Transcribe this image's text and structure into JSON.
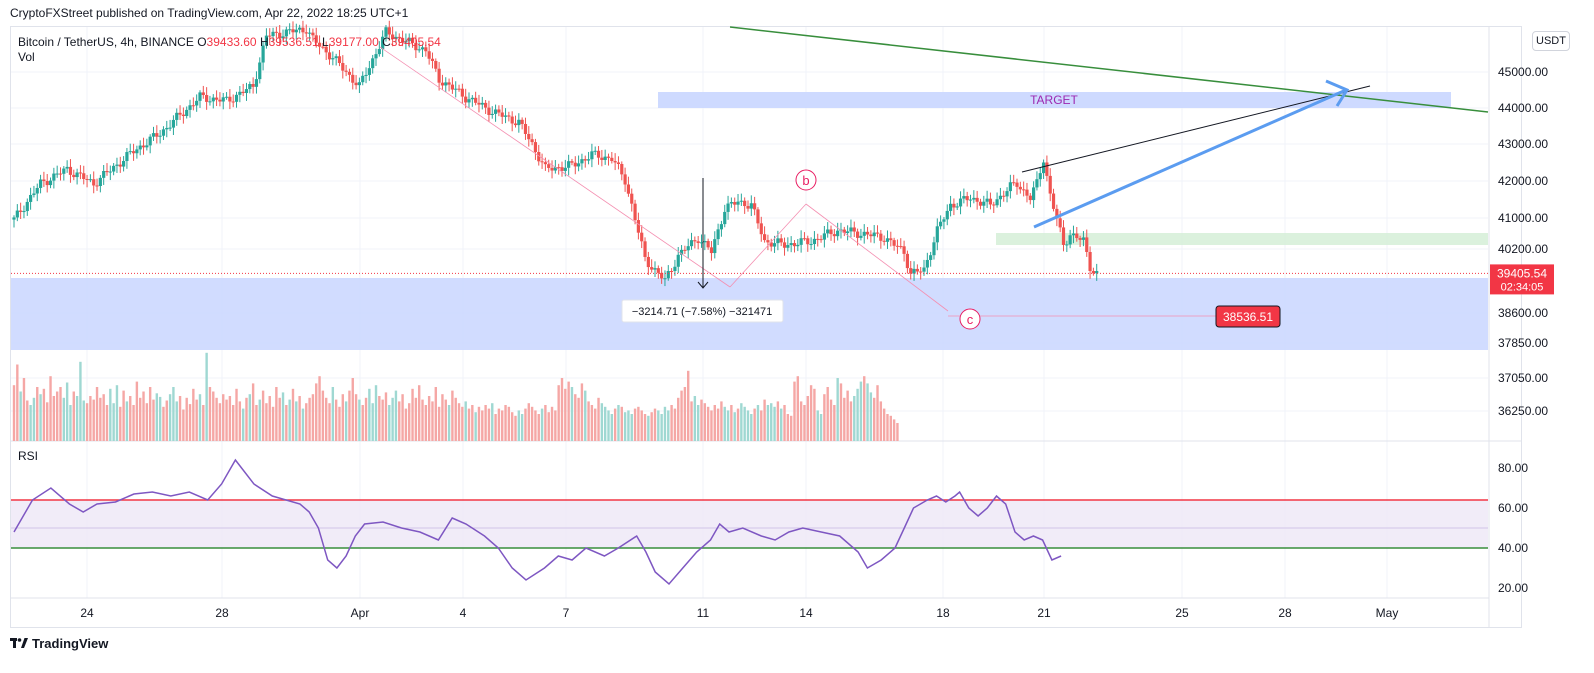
{
  "publisher": "CryptoFXStreet published on TradingView.com, Apr 22, 2022 18:25 UTC+1",
  "footer": "TradingView",
  "currency_button": "USDT",
  "legend": {
    "symbol": "Bitcoin / TetherUS, 4h, BINANCE",
    "open_label": "O",
    "open": "39433.60",
    "high_label": "H",
    "high": "39536.51",
    "low_label": "L",
    "low": "39177.00",
    "close_label": "C",
    "close": "39405.54"
  },
  "vol_label": "Vol",
  "rsi_label": "RSI",
  "colors": {
    "up": "#26a69a",
    "down": "#ef5350",
    "rsi": "#7e57c2",
    "zone_blue": "#c9d6ff",
    "zone_green": "#d7f0d9",
    "trend_green": "#388e3c",
    "arrow_blue": "#5b9cf0",
    "marker": "#e91e63"
  },
  "chart_data": {
    "type": "candlestick",
    "price_axis": {
      "ticks": [
        45000,
        44000,
        43000,
        42000,
        41000,
        40200,
        38600,
        37850,
        37050,
        36250
      ],
      "range": [
        35200,
        45950
      ]
    },
    "price_tick_labels": [
      "45000.00",
      "44000.00",
      "43000.00",
      "42000.00",
      "41000.00",
      "40200.00",
      "38600.00",
      "37850.00",
      "37050.00",
      "36250.00"
    ],
    "time_axis": {
      "labels": [
        "24",
        "28",
        "Apr",
        "4",
        "7",
        "11",
        "14",
        "18",
        "21",
        "25",
        "28",
        "May"
      ]
    },
    "last_price": "39405.54",
    "countdown": "02:34:05",
    "close_path": [
      [
        0,
        40900
      ],
      [
        8,
        41900
      ],
      [
        16,
        42300
      ],
      [
        24,
        41900
      ],
      [
        36,
        42800
      ],
      [
        44,
        43300
      ],
      [
        56,
        44300
      ],
      [
        64,
        44200
      ],
      [
        72,
        44600
      ],
      [
        76,
        46000
      ],
      [
        82,
        46100
      ],
      [
        88,
        46200
      ],
      [
        90,
        45900
      ],
      [
        96,
        45400
      ],
      [
        104,
        44600
      ],
      [
        112,
        46100
      ],
      [
        124,
        45600
      ],
      [
        128,
        44800
      ],
      [
        136,
        44300
      ],
      [
        144,
        43900
      ],
      [
        152,
        43600
      ],
      [
        156,
        43000
      ],
      [
        160,
        42300
      ],
      [
        168,
        42400
      ],
      [
        174,
        42700
      ],
      [
        180,
        42600
      ],
      [
        184,
        42000
      ],
      [
        186,
        41300
      ],
      [
        190,
        39800
      ],
      [
        196,
        39200
      ],
      [
        200,
        39900
      ],
      [
        206,
        40400
      ],
      [
        210,
        40000
      ],
      [
        214,
        41200
      ],
      [
        218,
        41400
      ],
      [
        222,
        41300
      ],
      [
        226,
        40300
      ],
      [
        232,
        40200
      ],
      [
        240,
        40300
      ],
      [
        248,
        40600
      ],
      [
        256,
        40500
      ],
      [
        262,
        40400
      ],
      [
        268,
        40000
      ],
      [
        270,
        39400
      ],
      [
        274,
        39500
      ],
      [
        278,
        40600
      ],
      [
        282,
        41300
      ],
      [
        288,
        41500
      ],
      [
        294,
        41300
      ],
      [
        300,
        41800
      ],
      [
        302,
        41900
      ],
      [
        306,
        41500
      ],
      [
        308,
        41900
      ],
      [
        310,
        42600
      ],
      [
        312,
        41600
      ],
      [
        316,
        40200
      ],
      [
        318,
        40500
      ],
      [
        322,
        40300
      ],
      [
        324,
        39600
      ],
      [
        326,
        39405.54
      ]
    ],
    "volume": [
      62,
      85,
      55,
      70,
      45,
      40,
      48,
      60,
      52,
      58,
      43,
      72,
      50,
      55,
      60,
      48,
      65,
      40,
      55,
      50,
      88,
      45,
      42,
      50,
      46,
      60,
      48,
      52,
      40,
      58,
      42,
      62,
      38,
      56,
      44,
      50,
      40,
      66,
      48,
      55,
      42,
      60,
      46,
      53,
      49,
      38,
      45,
      52,
      60,
      44,
      50,
      35,
      48,
      41,
      58,
      46,
      52,
      40,
      98,
      60,
      55,
      48,
      42,
      52,
      46,
      50,
      40,
      58,
      44,
      36,
      48,
      52,
      64,
      40,
      46,
      56,
      42,
      50,
      38,
      60,
      48,
      54,
      40,
      46,
      58,
      44,
      50,
      36,
      42,
      48,
      52,
      64,
      72,
      56,
      48,
      42,
      60,
      46,
      38,
      52,
      44,
      56,
      70,
      52,
      46,
      40,
      48,
      58,
      42,
      62,
      50,
      46,
      54,
      40,
      48,
      56,
      44,
      52,
      36,
      42,
      58,
      48,
      62,
      46,
      40,
      50,
      44,
      60,
      38,
      52,
      46,
      40,
      56,
      48,
      42,
      38,
      44,
      36,
      40,
      32,
      38,
      34,
      40,
      36,
      42,
      30,
      36,
      34,
      40,
      38,
      32,
      28,
      34,
      30,
      36,
      42,
      38,
      34,
      30,
      36,
      40,
      32,
      38,
      34,
      62,
      70,
      58,
      66,
      60,
      52,
      48,
      64,
      56,
      44,
      40,
      36,
      48,
      42,
      38,
      34,
      30,
      36,
      40,
      38,
      32,
      34,
      30,
      36,
      38,
      34,
      30,
      28,
      32,
      36,
      34,
      30,
      38,
      34,
      40,
      36,
      48,
      56,
      60,
      78,
      44,
      50,
      40,
      46,
      42,
      38,
      34,
      40,
      36,
      44,
      38,
      34,
      40,
      32,
      36,
      42,
      38,
      34,
      30,
      36,
      40,
      34,
      46,
      40,
      42,
      38,
      44,
      36,
      40,
      30,
      28,
      66,
      72,
      44,
      40,
      50,
      62,
      58,
      34,
      30,
      52,
      60,
      46,
      40,
      70,
      64,
      48,
      56,
      44,
      50,
      58,
      66,
      72,
      64,
      54,
      48,
      62,
      44,
      36,
      30,
      28,
      24,
      20
    ],
    "rsi": {
      "levels": [
        80,
        60,
        40,
        20
      ],
      "level_labels": [
        "80.00",
        "60.00",
        "40.00",
        "20.00"
      ],
      "upper_band": 64,
      "lower_band": 40,
      "mid": 50,
      "points": [
        [
          0,
          48
        ],
        [
          8,
          64
        ],
        [
          16,
          70
        ],
        [
          24,
          62
        ],
        [
          30,
          58
        ],
        [
          36,
          62
        ],
        [
          44,
          63
        ],
        [
          52,
          67
        ],
        [
          60,
          68
        ],
        [
          68,
          66
        ],
        [
          76,
          68
        ],
        [
          84,
          64
        ],
        [
          90,
          72
        ],
        [
          96,
          84
        ],
        [
          104,
          72
        ],
        [
          112,
          66
        ],
        [
          124,
          62
        ],
        [
          128,
          58
        ],
        [
          132,
          50
        ],
        [
          136,
          34
        ],
        [
          140,
          30
        ],
        [
          144,
          36
        ],
        [
          148,
          46
        ],
        [
          152,
          52
        ],
        [
          160,
          53
        ],
        [
          168,
          50
        ],
        [
          176,
          48
        ],
        [
          184,
          44
        ],
        [
          190,
          55
        ],
        [
          196,
          52
        ],
        [
          204,
          46
        ],
        [
          210,
          40
        ],
        [
          216,
          30
        ],
        [
          222,
          24
        ],
        [
          230,
          30
        ],
        [
          236,
          36
        ],
        [
          242,
          34
        ],
        [
          248,
          40
        ],
        [
          256,
          36
        ],
        [
          262,
          40
        ],
        [
          270,
          46
        ],
        [
          274,
          38
        ],
        [
          278,
          28
        ],
        [
          284,
          22
        ],
        [
          290,
          30
        ],
        [
          296,
          38
        ],
        [
          302,
          44
        ],
        [
          306,
          52
        ],
        [
          310,
          48
        ],
        [
          316,
          50
        ],
        [
          324,
          46
        ],
        [
          330,
          44
        ],
        [
          336,
          48
        ],
        [
          342,
          50
        ],
        [
          350,
          48
        ],
        [
          358,
          46
        ],
        [
          366,
          38
        ],
        [
          370,
          30
        ],
        [
          376,
          34
        ],
        [
          382,
          40
        ],
        [
          386,
          50
        ],
        [
          390,
          60
        ],
        [
          396,
          64
        ],
        [
          400,
          66
        ],
        [
          404,
          63
        ],
        [
          408,
          66
        ],
        [
          410,
          68
        ],
        [
          414,
          60
        ],
        [
          418,
          56
        ],
        [
          422,
          60
        ],
        [
          426,
          66
        ],
        [
          430,
          62
        ],
        [
          434,
          48
        ],
        [
          438,
          44
        ],
        [
          442,
          46
        ],
        [
          446,
          44
        ],
        [
          450,
          34
        ],
        [
          454,
          36
        ]
      ]
    },
    "annotations": {
      "target_label": "TARGET",
      "wave_b": "b",
      "wave_c": "c",
      "measure": "−3214.71 (−7.58%) −321471",
      "level_tag": "38536.51"
    }
  }
}
